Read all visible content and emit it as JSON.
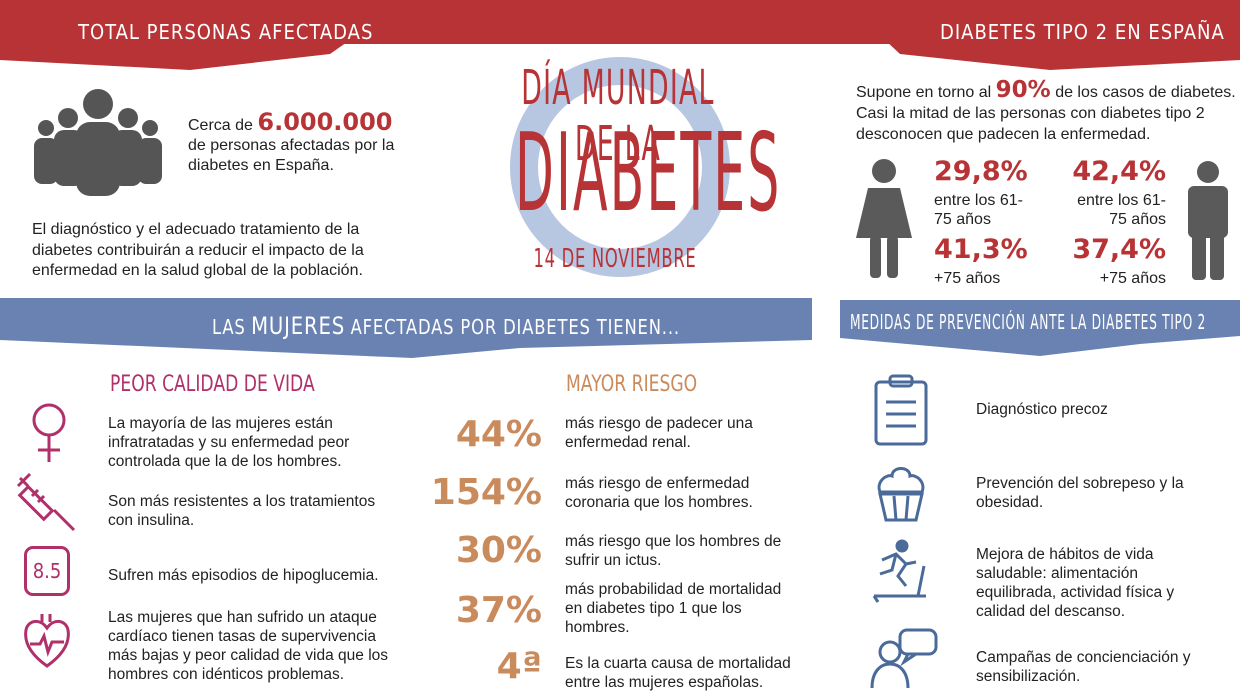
{
  "title": {
    "line1": "DÍA MUNDIAL DE LA",
    "line2": "DIABETES",
    "date": "14 DE NOVIEMBRE"
  },
  "total": {
    "banner": "TOTAL PERSONAS AFECTADAS",
    "prefix": "Cerca de",
    "number": "6.000.000",
    "rest": "de personas afectadas por la diabetes en España.",
    "paragraph": "El diagnóstico y el adecuado tratamiento de la diabetes contribuirán a reducir el impacto de la enfermedad en la salud global de la población."
  },
  "tipo2": {
    "banner": "DIABETES TIPO 2 EN ESPAÑA",
    "intro_pre": "Supone en torno al",
    "intro_num": "90%",
    "intro_post": "de los casos de diabetes.",
    "intro_line2": "Casi la mitad de las personas con diabetes tipo 2 desconocen que padecen la enfermedad.",
    "women": [
      {
        "value": "29,8%",
        "label": "entre los 61-75 años"
      },
      {
        "value": "41,3%",
        "label": "+75 años"
      }
    ],
    "men": [
      {
        "value": "42,4%",
        "label": "entre los 61-75 años"
      },
      {
        "value": "37,4%",
        "label": "+75 años"
      }
    ]
  },
  "mujeres": {
    "banner_pre": "LAS",
    "banner_em": "MUJERES",
    "banner_post": "AFECTADAS POR DIABETES TIENEN...",
    "calidad_title": "PEOR CALIDAD DE VIDA",
    "items": [
      {
        "icon": "female-symbol-icon",
        "text": "La mayoría de las mujeres están infratratadas y su enfermedad peor controlada que la de los hombres."
      },
      {
        "icon": "syringe-icon",
        "text": "Son más resistentes a los tratamientos con insulina."
      },
      {
        "icon": "glucometer-icon",
        "glyph": "8.5",
        "text": "Sufren más episodios de hipoglucemia."
      },
      {
        "icon": "heart-icon",
        "text": "Las mujeres que han sufrido un ataque cardíaco tienen tasas de supervivencia más bajas y peor calidad de vida que los hombres con idénticos problemas."
      }
    ],
    "riesgo_title": "MAYOR RIESGO",
    "riesgos": [
      {
        "value": "44%",
        "text": "más riesgo de padecer una enfermedad renal."
      },
      {
        "value": "154%",
        "text": "más riesgo de enfermedad coronaria que los hombres."
      },
      {
        "value": "30%",
        "text": "más riesgo que los hombres de sufrir un ictus."
      },
      {
        "value": "37%",
        "text": "más probabilidad de mortalidad en diabetes tipo 1 que los hombres."
      },
      {
        "value": "4ª",
        "text": "Es la cuarta causa de mortalidad entre las mujeres españolas."
      }
    ]
  },
  "prevencion": {
    "banner": "MEDIDAS DE PREVENCIÓN ANTE LA DIABETES TIPO 2",
    "items": [
      {
        "icon": "clipboard-icon",
        "text": "Diagnóstico precoz"
      },
      {
        "icon": "cupcake-icon",
        "text": "Prevención del sobrepeso y la obesidad."
      },
      {
        "icon": "treadmill-icon",
        "text": "Mejora de hábitos de vida saludable: alimentación equilibrada, actividad física y calidad del descanso."
      },
      {
        "icon": "speech-bubble-icon",
        "text": "Campañas de concienciación y sensibilización."
      }
    ]
  },
  "colors": {
    "red": "#b73336",
    "blue": "#6a82b1",
    "pink": "#b0306a",
    "orange": "#c98a5c",
    "gray": "#5a5a5a"
  }
}
